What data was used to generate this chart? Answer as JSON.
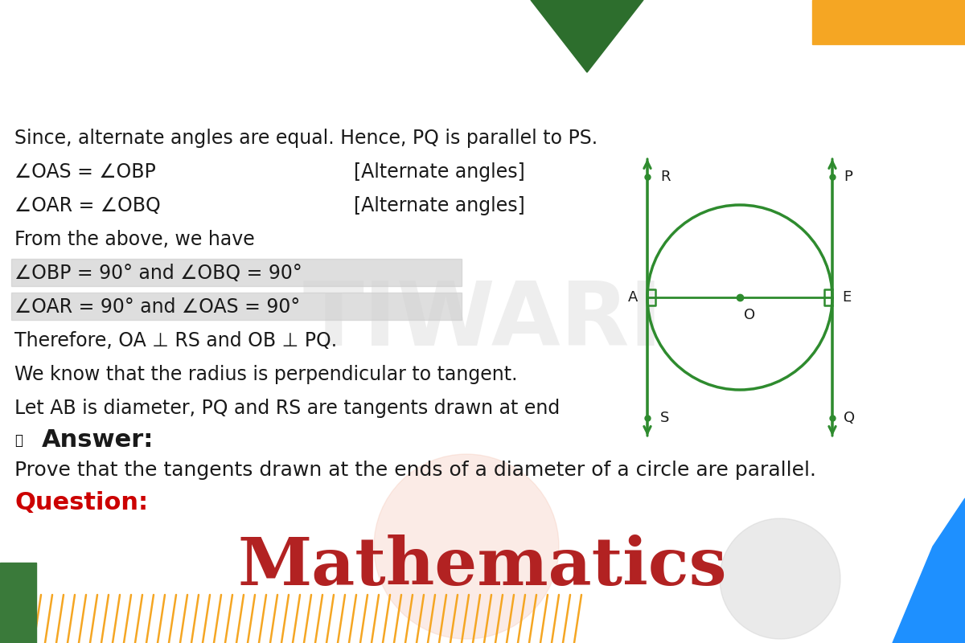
{
  "title": "Mathematics",
  "title_color": "#b22222",
  "title_fontsize": 60,
  "bg_color": "#ffffff",
  "question_label": "Question:",
  "question_color": "#cc0000",
  "question_fontsize": 20,
  "question_text": "Prove that the tangents drawn at the ends of a diameter of a circle are parallel.",
  "answer_label": "Answer:",
  "body_fontsize": 17,
  "circle_color": "#2e8b2e",
  "slash_color": "#f5a623",
  "watermark_color": "#d0d0d0",
  "green_corner": "#3a7a3a",
  "blue_corner": "#1e90ff",
  "yellow_corner": "#f5a623",
  "dark_green_tri": "#2d6e2d",
  "highlight_color": "#d0d0d0",
  "body_lines_left": [
    "Let AB is diameter, PQ and RS are tangents drawn at end",
    "We know that the radius is perpendicular to tangent.",
    "Therefore, OA ⊥ RS and OB ⊥ PQ.",
    "∠OAR = 90° and ∠OAS = 90°",
    "∠OBP = 90° and ∠OBQ = 90°",
    "From the above, we have",
    "∠OAR = ∠OBQ",
    "∠OAS = ∠OBP",
    "Since, alternate angles are equal. Hence, PQ is parallel to PS."
  ],
  "bracket_lines": {
    "6": "[Alternate angles]",
    "7": "[Alternate angles]"
  },
  "highlight_indices": [
    3,
    4
  ]
}
